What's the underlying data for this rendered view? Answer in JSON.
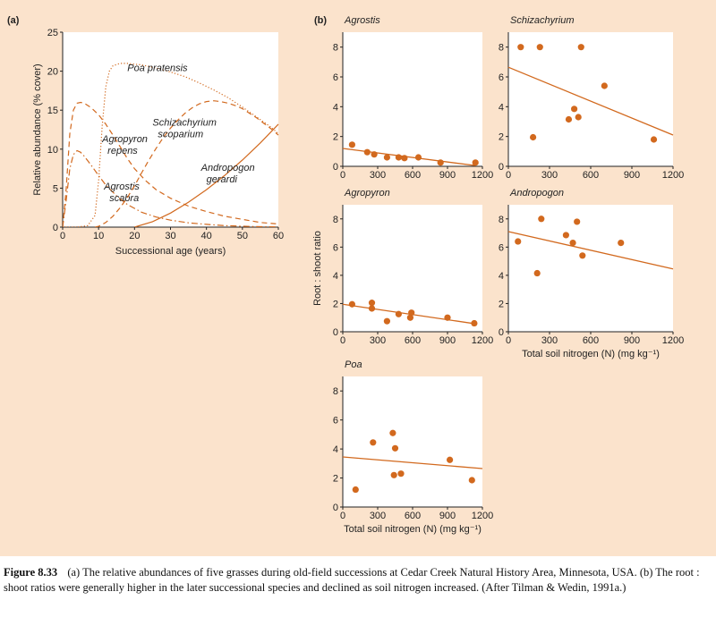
{
  "colors": {
    "panel_bg": "#fbe3cc",
    "plot_bg": "#ffffff",
    "series": "#d2691e",
    "ink": "#222222"
  },
  "caption": {
    "label": "Figure 8.33",
    "text": "(a) The relative abundances of five grasses during old-field successions at Cedar Creek Natural History Area, Minnesota, USA. (b) The root : shoot ratios were generally higher in the later successional species and declined as soil nitrogen increased. (After Tilman & Wedin, 1991a.)"
  },
  "chart_data": [
    {
      "panel": "(a)",
      "type": "line",
      "xlabel": "Successional age (years)",
      "ylabel": "Relative abundance (% cover)",
      "xlim": [
        0,
        60
      ],
      "ylim": [
        0,
        25
      ],
      "xticks": [
        0,
        10,
        20,
        30,
        40,
        50,
        60
      ],
      "yticks": [
        0,
        5,
        10,
        15,
        20,
        25
      ],
      "series": [
        {
          "name": "Poa pratensis",
          "style": "dotted",
          "label_lines": [
            "Poa pratensis"
          ],
          "label_at": [
            18,
            20
          ],
          "x": [
            0,
            4,
            7,
            9,
            10,
            11,
            12,
            13,
            14,
            16,
            18,
            22,
            26,
            30,
            34,
            38,
            42,
            46,
            50,
            54,
            58,
            60
          ],
          "y": [
            0,
            0,
            0.2,
            1.5,
            6,
            13,
            18,
            20,
            20.7,
            21,
            21,
            20.8,
            20.4,
            19.9,
            19.3,
            18.5,
            17.6,
            16.6,
            15.4,
            14.1,
            12.8,
            12
          ]
        },
        {
          "name": "Agropyron repens",
          "style": "dashed",
          "label_lines": [
            "Agropyron",
            "repens"
          ],
          "label_at": [
            11,
            10.9
          ],
          "x": [
            0,
            1,
            2,
            3,
            4,
            5,
            6,
            8,
            10,
            12,
            14,
            16,
            18,
            20,
            23,
            26,
            30,
            35,
            40,
            45,
            50,
            55,
            60
          ],
          "y": [
            0,
            5,
            12,
            15,
            15.9,
            16,
            15.9,
            15.3,
            14.4,
            13.2,
            11.8,
            10.3,
            8.8,
            7.5,
            6,
            4.8,
            3.7,
            2.7,
            2,
            1.4,
            1,
            0.6,
            0.4
          ]
        },
        {
          "name": "Agrostis scabra",
          "style": "dashdot",
          "label_lines": [
            "Agrostis",
            "scabra"
          ],
          "label_at": [
            11.5,
            4.8
          ],
          "x": [
            0,
            1,
            2,
            3,
            4,
            5,
            6,
            8,
            10,
            12,
            15,
            18,
            22,
            26,
            30,
            35,
            40,
            45,
            50,
            55,
            60
          ],
          "y": [
            0,
            3.5,
            7.5,
            9.3,
            9.8,
            9.6,
            9.1,
            7.9,
            6.6,
            5.4,
            4,
            2.9,
            1.9,
            1.3,
            0.9,
            0.55,
            0.35,
            0.2,
            0.12,
            0.06,
            0.04
          ]
        },
        {
          "name": "Schizachyrium scoparium",
          "style": "dashed",
          "label_lines": [
            "Schizachyrium",
            "scoparium"
          ],
          "label_at": [
            25,
            13
          ],
          "x": [
            9,
            10,
            12,
            14,
            16,
            18,
            20,
            22,
            24,
            26,
            28,
            30,
            32,
            34,
            36,
            38,
            40,
            42,
            44,
            46,
            48,
            50,
            52,
            54,
            56,
            58,
            60
          ],
          "y": [
            0,
            0.1,
            0.6,
            1.4,
            2.5,
            3.8,
            5.3,
            7,
            8.6,
            10.1,
            11.5,
            12.7,
            13.7,
            14.6,
            15.3,
            15.8,
            16.1,
            16.2,
            16.1,
            15.9,
            15.6,
            15.2,
            14.6,
            14,
            13.3,
            12.6,
            11.8
          ]
        },
        {
          "name": "Andropogon gerardi",
          "style": "solid",
          "label_lines": [
            "Andropogon",
            "gerardi"
          ],
          "label_at": [
            38.5,
            7.2
          ],
          "x": [
            20,
            25,
            30,
            35,
            40,
            45,
            50,
            55,
            60
          ],
          "y": [
            0,
            0.7,
            1.8,
            3.2,
            4.8,
            6.6,
            8.6,
            10.8,
            13.2
          ]
        }
      ]
    },
    {
      "panel": "(b)",
      "type": "scatter",
      "ylabel": "Root : shoot ratio",
      "xlabel": "Total soil nitrogen (N) (mg kg⁻¹)",
      "xlim": [
        0,
        1200
      ],
      "ylim": [
        0,
        9
      ],
      "xticks": [
        0,
        300,
        600,
        900,
        1200
      ],
      "yticks": [
        0,
        2,
        4,
        6,
        8
      ],
      "subplots": [
        {
          "title": "Agrostis",
          "points": [
            [
              80,
              1.45
            ],
            [
              210,
              0.95
            ],
            [
              270,
              0.8
            ],
            [
              380,
              0.6
            ],
            [
              480,
              0.6
            ],
            [
              530,
              0.55
            ],
            [
              650,
              0.6
            ],
            [
              840,
              0.25
            ],
            [
              1140,
              0.25
            ]
          ],
          "trend": [
            [
              0,
              1.2
            ],
            [
              1140,
              0.05
            ]
          ]
        },
        {
          "title": "Schizachyrium",
          "points": [
            [
              90,
              8.0
            ],
            [
              230,
              8.0
            ],
            [
              180,
              1.95
            ],
            [
              440,
              3.15
            ],
            [
              480,
              3.85
            ],
            [
              510,
              3.3
            ],
            [
              530,
              8.0
            ],
            [
              700,
              5.4
            ],
            [
              1060,
              1.8
            ]
          ],
          "trend": [
            [
              0,
              6.65
            ],
            [
              1200,
              2.1
            ]
          ]
        },
        {
          "title": "Agropyron",
          "points": [
            [
              80,
              1.95
            ],
            [
              250,
              2.05
            ],
            [
              250,
              1.65
            ],
            [
              380,
              0.75
            ],
            [
              480,
              1.25
            ],
            [
              580,
              1.0
            ],
            [
              590,
              1.35
            ],
            [
              900,
              1.0
            ],
            [
              1130,
              0.6
            ]
          ],
          "trend": [
            [
              0,
              1.95
            ],
            [
              1150,
              0.55
            ]
          ]
        },
        {
          "title": "Andropogon",
          "points": [
            [
              70,
              6.4
            ],
            [
              210,
              4.15
            ],
            [
              240,
              8.0
            ],
            [
              420,
              6.85
            ],
            [
              470,
              6.3
            ],
            [
              500,
              7.8
            ],
            [
              540,
              5.4
            ],
            [
              820,
              6.3
            ]
          ],
          "trend": [
            [
              0,
              7.1
            ],
            [
              1200,
              4.45
            ]
          ]
        },
        {
          "title": "Poa",
          "points": [
            [
              110,
              1.2
            ],
            [
              260,
              4.45
            ],
            [
              430,
              5.1
            ],
            [
              440,
              2.2
            ],
            [
              450,
              4.05
            ],
            [
              500,
              2.3
            ],
            [
              920,
              3.25
            ],
            [
              1110,
              1.85
            ]
          ],
          "trend": [
            [
              0,
              3.45
            ],
            [
              1200,
              2.65
            ]
          ]
        }
      ]
    }
  ]
}
